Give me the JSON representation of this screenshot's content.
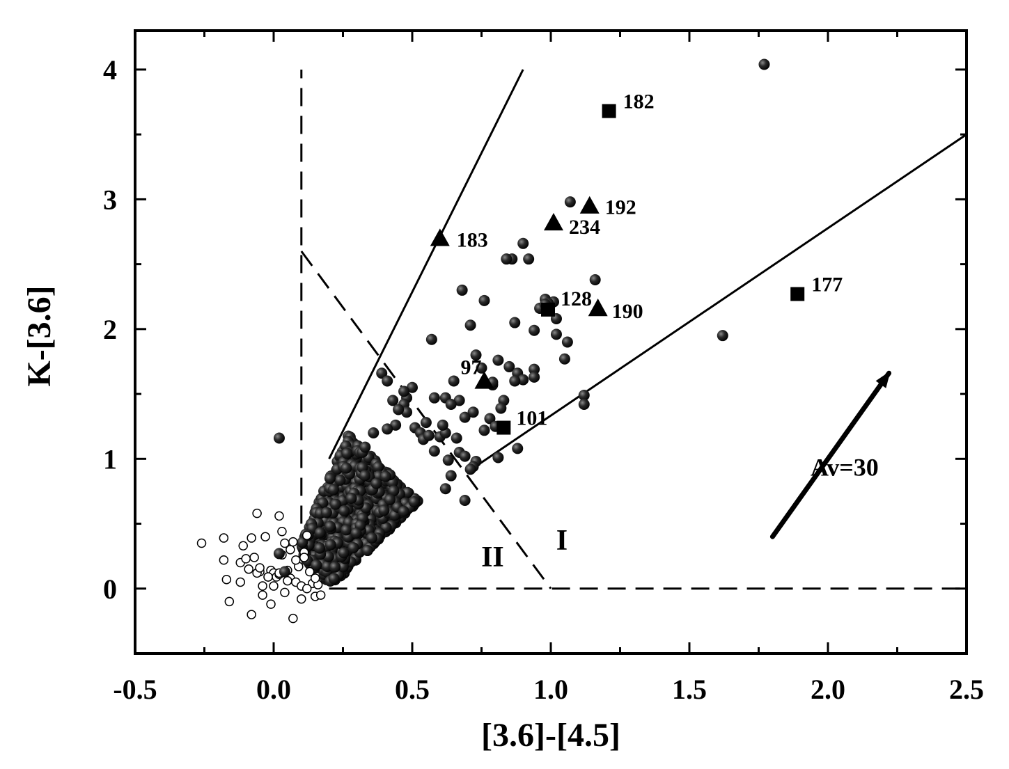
{
  "chart_data": {
    "type": "scatter",
    "title": "",
    "xlabel": "[3.6]-[4.5]",
    "ylabel": "K-[3.6]",
    "xlim": [
      -0.5,
      2.5
    ],
    "ylim": [
      -0.5,
      4.3
    ],
    "grid": false,
    "x_ticks": [
      "-0.5",
      "0.0",
      "0.5",
      "1.0",
      "1.5",
      "2.0",
      "2.5"
    ],
    "y_ticks": [
      "0",
      "1",
      "2",
      "3",
      "4"
    ],
    "colors": {
      "axis": "#000000",
      "filled_marker": "#1e1e1e",
      "marker_highlight": "#8a8a8a"
    },
    "series": [
      {
        "marker": "filled-circle",
        "x": [
          0.02,
          1.77,
          1.62,
          0.57,
          0.39,
          0.41,
          1.07,
          0.9,
          0.86,
          0.92,
          0.84,
          0.68,
          0.76,
          0.98,
          1.01,
          0.96,
          1.16,
          1.06,
          0.71,
          0.87,
          0.94,
          1.02,
          1.05,
          0.73,
          0.81,
          0.85,
          0.88,
          0.94,
          0.94,
          0.9,
          0.79,
          0.5,
          0.65,
          0.58,
          0.62,
          0.67,
          0.64,
          0.72,
          0.69,
          0.83,
          0.82,
          0.78,
          0.8,
          0.76,
          0.88,
          1.12,
          1.12,
          0.87,
          0.81,
          0.73,
          0.72,
          0.55,
          0.48,
          0.47,
          0.43,
          0.48,
          0.51,
          0.53,
          0.54,
          0.56,
          0.6,
          0.62,
          0.58,
          0.66,
          0.67,
          0.69,
          0.71,
          0.63,
          0.64,
          0.62,
          0.45,
          0.44,
          0.41,
          0.36,
          0.33,
          0.02,
          0.04,
          1.02,
          0.99,
          0.98,
          0.75,
          0.47,
          0.69,
          0.79,
          0.61
        ],
        "y": [
          1.16,
          4.04,
          1.95,
          1.92,
          1.66,
          1.6,
          2.98,
          2.66,
          2.54,
          2.54,
          2.54,
          2.3,
          2.22,
          2.23,
          2.21,
          2.16,
          2.38,
          1.9,
          2.03,
          2.05,
          1.99,
          1.96,
          1.77,
          1.8,
          1.76,
          1.71,
          1.66,
          1.69,
          1.63,
          1.61,
          1.57,
          1.55,
          1.6,
          1.47,
          1.47,
          1.45,
          1.42,
          1.36,
          1.32,
          1.45,
          1.39,
          1.31,
          1.25,
          1.22,
          1.08,
          1.49,
          1.42,
          1.6,
          1.01,
          0.98,
          0.94,
          1.28,
          1.47,
          1.42,
          1.45,
          1.36,
          1.24,
          1.2,
          1.15,
          1.18,
          1.17,
          1.2,
          1.06,
          1.16,
          1.05,
          1.02,
          0.92,
          0.99,
          0.87,
          0.77,
          1.38,
          1.26,
          1.23,
          1.2,
          1.09,
          0.27,
          0.13,
          2.08,
          2.2,
          2.19,
          1.7,
          1.52,
          0.68,
          1.59,
          1.26
        ]
      },
      {
        "marker": "open-circle",
        "x": [
          -0.26,
          -0.18,
          -0.18,
          -0.17,
          -0.16,
          -0.12,
          -0.11,
          -0.1,
          -0.08,
          -0.07,
          -0.06,
          -0.05,
          -0.04,
          -0.03,
          -0.02,
          -0.01,
          0.0,
          0.01,
          0.02,
          0.03,
          0.04,
          0.05,
          0.06,
          0.07,
          0.08,
          0.09,
          0.1,
          0.11,
          0.12,
          0.13,
          0.14,
          0.15,
          0.16,
          0.17,
          -0.08,
          -0.06,
          -0.02,
          0.02,
          0.04,
          -0.12,
          -0.09,
          -0.04,
          0.0,
          0.03,
          0.06,
          0.08,
          0.12,
          0.15,
          0.1,
          0.07,
          -0.01,
          0.05,
          0.02,
          -0.05,
          0.11
        ],
        "y": [
          0.35,
          0.39,
          0.22,
          0.07,
          -0.1,
          0.2,
          0.33,
          0.23,
          0.39,
          0.24,
          0.58,
          0.13,
          0.02,
          0.4,
          0.09,
          0.14,
          0.12,
          0.09,
          0.56,
          0.44,
          0.35,
          0.14,
          0.08,
          -0.23,
          0.05,
          0.17,
          0.02,
          0.28,
          0.41,
          0.13,
          0.04,
          -0.06,
          0.03,
          -0.05,
          -0.2,
          0.12,
          0.09,
          0.11,
          -0.03,
          0.05,
          0.15,
          -0.05,
          0.02,
          0.26,
          0.3,
          0.22,
          0.0,
          0.08,
          -0.08,
          0.36,
          -0.12,
          0.06,
          0.12,
          0.16,
          0.24
        ]
      },
      {
        "marker": "triangle",
        "points": [
          {
            "x": 0.6,
            "y": 2.7,
            "label": "183"
          },
          {
            "x": 1.14,
            "y": 2.95,
            "label": "192"
          },
          {
            "x": 1.01,
            "y": 2.82,
            "label": "234"
          },
          {
            "x": 1.17,
            "y": 2.16,
            "label": "190"
          },
          {
            "x": 0.76,
            "y": 1.6,
            "label": "97"
          }
        ]
      },
      {
        "marker": "square",
        "points": [
          {
            "x": 1.21,
            "y": 3.68,
            "label": "182"
          },
          {
            "x": 1.89,
            "y": 2.27,
            "label": "177"
          },
          {
            "x": 0.99,
            "y": 2.15,
            "label": "128"
          },
          {
            "x": 0.83,
            "y": 1.24,
            "label": "101"
          }
        ]
      }
    ],
    "reference_lines": [
      {
        "style": "solid",
        "x": [
          0.2,
          0.9
        ],
        "y": [
          1.0,
          4.0
        ]
      },
      {
        "style": "solid",
        "x": [
          0.7,
          2.5
        ],
        "y": [
          0.9,
          3.5
        ]
      },
      {
        "style": "dashed",
        "x": [
          0.1,
          0.1
        ],
        "y": [
          0.5,
          4.0
        ]
      },
      {
        "style": "dashed",
        "x": [
          0.1,
          1.0
        ],
        "y": [
          2.6,
          0.0
        ]
      },
      {
        "style": "dashed",
        "x": [
          0.2,
          2.5
        ],
        "y": [
          0.0,
          0.0
        ]
      }
    ],
    "annotations": [
      {
        "text": "II",
        "x": 0.79,
        "y": 0.17
      },
      {
        "text": "I",
        "x": 1.04,
        "y": 0.3
      },
      {
        "text": "Av=30",
        "x": 2.06,
        "y": 0.87
      }
    ],
    "extinction_vector": {
      "label": "Av=30",
      "x": [
        1.8,
        2.22
      ],
      "y": [
        0.4,
        1.66
      ]
    }
  }
}
